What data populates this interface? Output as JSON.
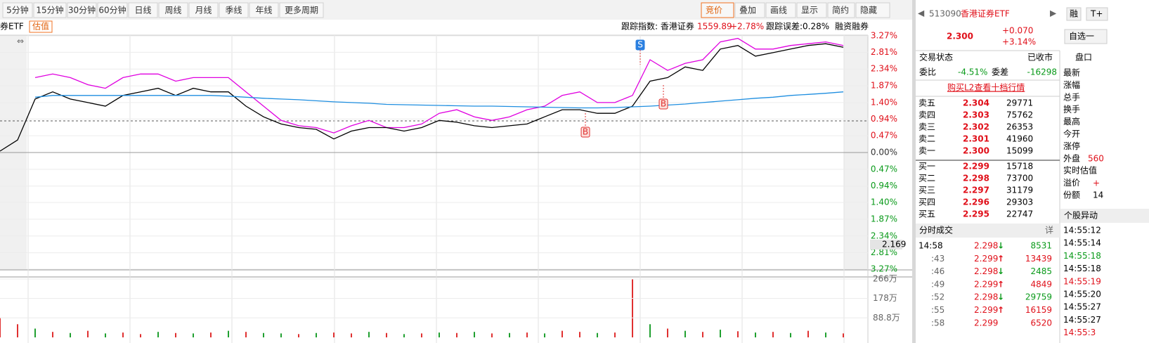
{
  "toolbar": {
    "periods": [
      "5分钟",
      "15分钟",
      "30分钟",
      "60分钟",
      "日线",
      "周线",
      "月线",
      "季线",
      "年线",
      "更多周期"
    ],
    "tools": [
      "竞价",
      "叠加",
      "画线",
      "显示",
      "简约",
      "隐藏"
    ]
  },
  "info": {
    "name": "券ETF",
    "tag": "估值",
    "index_label": "跟踪指数: 香港证券",
    "index_value": "1559.89",
    "index_change": "+2.78%",
    "error_label": "跟踪误差:",
    "error_value": "0.28%",
    "margin": "融资融券"
  },
  "chart_data": [
    {
      "type": "line",
      "ylim": [
        -3.27,
        3.27
      ],
      "yticks": [
        {
          "value": 3.27,
          "label": "3.27%"
        },
        {
          "value": 2.81,
          "label": "2.81%"
        },
        {
          "value": 2.34,
          "label": "2.34%"
        },
        {
          "value": 1.87,
          "label": "1.87%"
        },
        {
          "value": 1.4,
          "label": "1.40%"
        },
        {
          "value": 0.94,
          "label": "0.94%"
        },
        {
          "value": 0.47,
          "label": "0.47%"
        },
        {
          "value": 0,
          "label": "0.00%"
        },
        {
          "value": -0.47,
          "label": "0.47%"
        },
        {
          "value": -0.94,
          "label": "0.94%"
        },
        {
          "value": -1.4,
          "label": "1.40%"
        },
        {
          "value": -1.87,
          "label": "1.87%"
        },
        {
          "value": -2.34,
          "label": "2.34%"
        },
        {
          "value": -2.81,
          "label": "2.81%"
        },
        {
          "value": -3.27,
          "label": "3.27%"
        }
      ],
      "series": [
        {
          "color": "#e000e0",
          "values": [
            null,
            null,
            2.1,
            2.2,
            2.1,
            1.9,
            1.8,
            2.1,
            2.2,
            2.2,
            2.0,
            2.1,
            2.1,
            2.1,
            1.7,
            1.3,
            0.9,
            0.75,
            0.7,
            0.55,
            0.75,
            0.9,
            0.7,
            0.7,
            0.8,
            1.1,
            1.2,
            1.0,
            0.9,
            1.0,
            1.2,
            1.3,
            1.6,
            1.7,
            1.4,
            1.4,
            1.6,
            2.6,
            2.3,
            2.5,
            2.6,
            3.1,
            3.2,
            2.9,
            2.9,
            3.0,
            3.05,
            3.1,
            3.0
          ]
        },
        {
          "color": "#000000",
          "values": [
            0.04,
            0.35,
            1.5,
            1.7,
            1.5,
            1.4,
            1.3,
            1.6,
            1.7,
            1.8,
            1.6,
            1.8,
            1.7,
            1.7,
            1.3,
            1.0,
            0.8,
            0.7,
            0.65,
            0.38,
            0.6,
            0.7,
            0.7,
            0.6,
            0.7,
            0.9,
            0.85,
            0.75,
            0.7,
            0.75,
            0.8,
            1.0,
            1.2,
            1.2,
            1.1,
            1.1,
            1.3,
            2.0,
            2.1,
            2.4,
            2.3,
            2.9,
            3.0,
            2.7,
            2.8,
            2.9,
            3.0,
            3.05,
            2.95
          ]
        },
        {
          "color": "#1e8ee0",
          "values": [
            null,
            null,
            1.55,
            1.6,
            1.6,
            1.6,
            1.6,
            1.6,
            1.6,
            1.6,
            1.6,
            1.6,
            1.6,
            1.58,
            1.55,
            1.52,
            1.5,
            1.48,
            1.45,
            1.42,
            1.4,
            1.38,
            1.35,
            1.34,
            1.33,
            1.32,
            1.31,
            1.3,
            1.3,
            1.29,
            1.28,
            1.27,
            1.26,
            1.25,
            1.25,
            1.26,
            1.28,
            1.3,
            1.33,
            1.36,
            1.4,
            1.44,
            1.48,
            1.52,
            1.55,
            1.6,
            1.63,
            1.66,
            1.7
          ]
        }
      ],
      "annotations": [
        "S",
        "B",
        "B",
        "2.169"
      ]
    },
    {
      "type": "bar",
      "ylim": [
        0,
        266
      ],
      "yticks": [
        {
          "value": 266,
          "label": "266万"
        },
        {
          "value": 178,
          "label": "178万"
        },
        {
          "value": 88.8,
          "label": "88.8万"
        }
      ],
      "values": [
        90,
        60,
        40,
        25,
        20,
        30,
        18,
        22,
        15,
        25,
        20,
        18,
        22,
        30,
        25,
        20,
        18,
        15,
        20,
        22,
        18,
        25,
        20,
        15,
        18,
        22,
        20,
        25,
        18,
        20,
        22,
        18,
        30,
        25,
        20,
        22,
        266,
        60,
        40,
        30,
        25,
        35,
        28,
        22,
        25,
        20,
        30,
        22,
        18
      ],
      "colors": [
        "#e03030",
        "#e03030",
        "#20a030",
        "#e03030",
        "#20a030",
        "#e03030",
        "#20a030",
        "#e03030",
        "#e03030",
        "#20a030",
        "#e03030",
        "#20a030",
        "#e03030",
        "#20a030",
        "#e03030",
        "#20a030",
        "#20a030",
        "#e03030",
        "#20a030",
        "#e03030",
        "#e03030",
        "#20a030",
        "#e03030",
        "#20a030",
        "#e03030",
        "#20a030",
        "#e03030",
        "#20a030",
        "#e03030",
        "#20a030",
        "#e03030",
        "#20a030",
        "#e03030",
        "#e03030",
        "#20a030",
        "#e03030",
        "#e03030",
        "#20a030",
        "#e03030",
        "#20a030",
        "#e03030",
        "#20a030",
        "#e03030",
        "#20a030",
        "#e03030",
        "#20a030",
        "#e03030",
        "#20a030",
        "#e03030"
      ]
    }
  ],
  "quote": {
    "code": "513090",
    "name": "香港证券ETF",
    "badge1": "融",
    "badge2": "T+",
    "price": "2.300",
    "change": "+0.070",
    "change_pct": "+3.14%",
    "watch": "自选一",
    "status_label": "交易状态",
    "status": "已收市",
    "ratio_label": "委比",
    "ratio": "-4.51%",
    "diff_label": "委差",
    "diff": "-16298",
    "l2": "购买L2查看十档行情",
    "book": [
      [
        "卖五",
        "2.304",
        "29771"
      ],
      [
        "卖四",
        "2.303",
        "75762"
      ],
      [
        "卖三",
        "2.302",
        "26353"
      ],
      [
        "卖二",
        "2.301",
        "41960"
      ],
      [
        "卖一",
        "2.300",
        "15099"
      ],
      [
        "买一",
        "2.299",
        "15718"
      ],
      [
        "买二",
        "2.298",
        "73700"
      ],
      [
        "买三",
        "2.297",
        "31179"
      ],
      [
        "买四",
        "2.296",
        "29303"
      ],
      [
        "买五",
        "2.295",
        "22747"
      ]
    ],
    "trades_title": "分时成交",
    "trades_detail": "详",
    "trades": [
      [
        "14:58",
        "2.298",
        "↓",
        "8531"
      ],
      [
        ":43",
        "2.299",
        "↑",
        "13439"
      ],
      [
        ":46",
        "2.298",
        "↓",
        "2485"
      ],
      [
        ":49",
        "2.299",
        "↑",
        "4849"
      ],
      [
        ":52",
        "2.298",
        "↓",
        "29759"
      ],
      [
        ":55",
        "2.299",
        "↑",
        "16159"
      ],
      [
        ":58",
        "2.299",
        "",
        "6520"
      ]
    ],
    "panel_title": "盘口",
    "panel": [
      "最新",
      "涨幅",
      "总手",
      "换手",
      "最高",
      "今开",
      "涨停",
      "外盘",
      "实时估值",
      "溢价",
      "份额"
    ],
    "panel_values": [
      "560",
      "+",
      "14"
    ],
    "alerts_title": "个股异动",
    "alerts": [
      "14:55:12",
      "14:55:14",
      "14:55:18",
      "14:55:18",
      "14:55:19",
      "14:55:20",
      "14:55:27",
      "14:55:27",
      "14:55:3"
    ],
    "alert_colors": [
      "#000000",
      "#000000",
      "#0a9a1a",
      "#000000",
      "#e0101a",
      "#000000",
      "#000000",
      "#000000",
      "#e0101a"
    ]
  }
}
